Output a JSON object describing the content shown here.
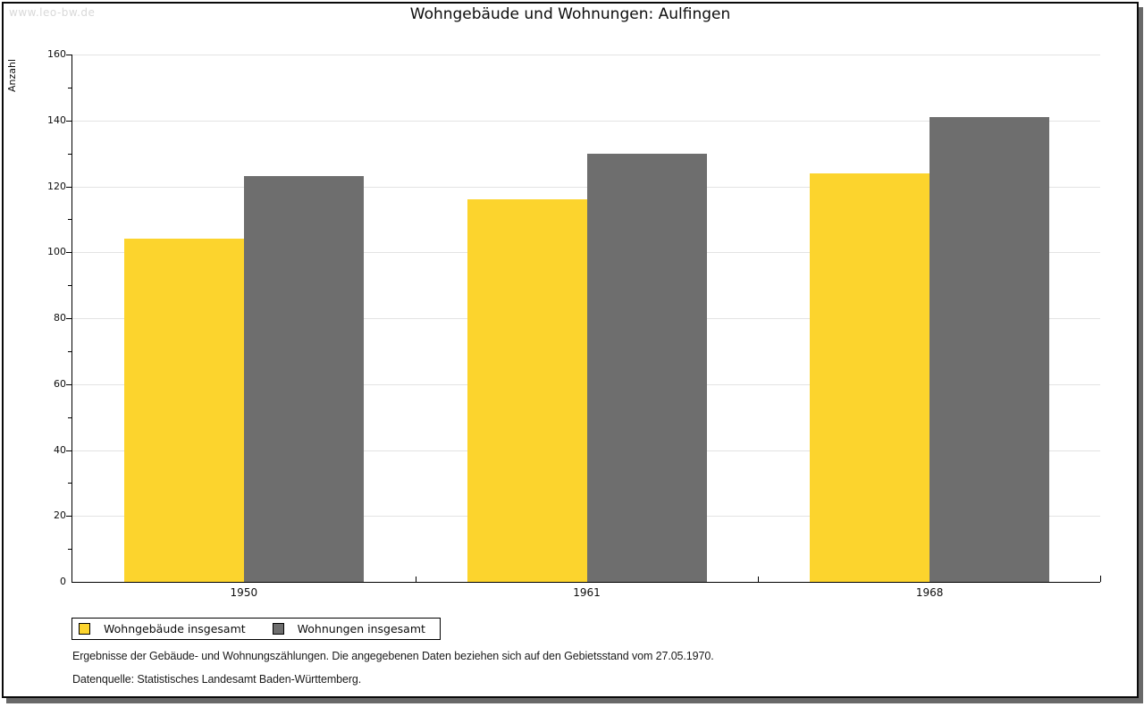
{
  "header": {
    "watermark": "www.leo-bw.de"
  },
  "chart_data": {
    "type": "bar",
    "title": "Wohngebäude und Wohnungen: Aulfingen",
    "ylabel": "Anzahl",
    "xlabel": "",
    "categories": [
      "1950",
      "1961",
      "1968"
    ],
    "series": [
      {
        "name": "Wohngebäude insgesamt",
        "color": "#fcd42d",
        "values": [
          104,
          116,
          124
        ]
      },
      {
        "name": "Wohnungen insgesamt",
        "color": "#6e6e6e",
        "values": [
          123,
          130,
          141
        ]
      }
    ],
    "ylim": [
      0,
      160
    ],
    "ytick_step": 20,
    "yminor_step": 10,
    "grid": true,
    "legend_position": "bottom-left"
  },
  "footnotes": {
    "line1": "Ergebnisse der Gebäude- und Wohnungszählungen. Die angegebenen Daten beziehen sich auf den Gebietsstand vom 27.05.1970.",
    "line2": "Datenquelle: Statistisches Landesamt Baden-Württemberg."
  },
  "colors": {
    "gridline": "#e3e3e3",
    "axis": "#000000",
    "watermark": "#d9d9d9",
    "frame_shadow": "#696969"
  }
}
